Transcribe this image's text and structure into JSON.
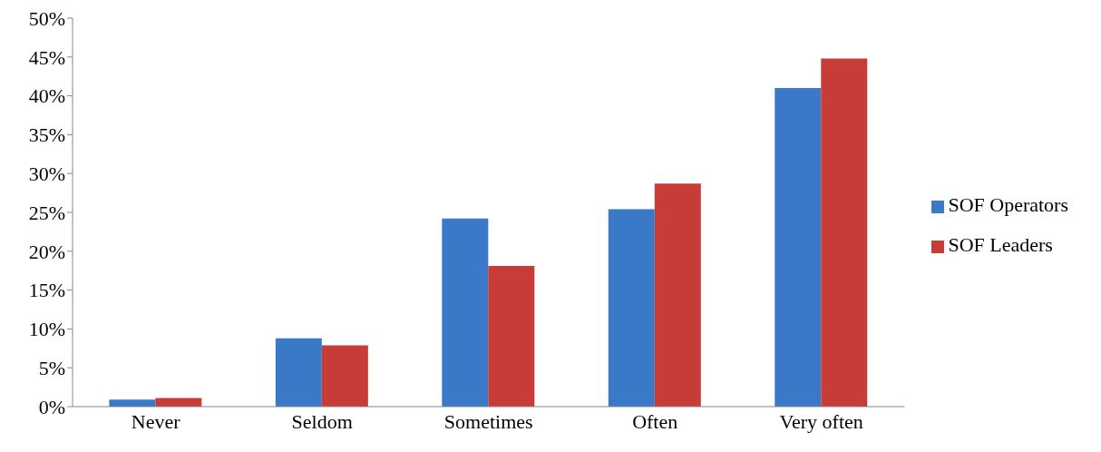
{
  "chart_data": {
    "type": "bar",
    "categories": [
      "Never",
      "Seldom",
      "Sometimes",
      "Often",
      "Very often"
    ],
    "series": [
      {
        "name": "SOF Operators",
        "color": "#3a78c8",
        "values": [
          0.9,
          8.8,
          24.2,
          25.4,
          41.0
        ]
      },
      {
        "name": "SOF Leaders",
        "color": "#c83c38",
        "values": [
          1.1,
          7.9,
          18.1,
          28.7,
          44.8
        ]
      }
    ],
    "ylim": [
      0,
      50
    ],
    "yticks": [
      {
        "value": 0,
        "label": "0%"
      },
      {
        "value": 5,
        "label": "5%"
      },
      {
        "value": 10,
        "label": "10%"
      },
      {
        "value": 15,
        "label": "15%"
      },
      {
        "value": 20,
        "label": "20%"
      },
      {
        "value": 25,
        "label": "25%"
      },
      {
        "value": 30,
        "label": "30%"
      },
      {
        "value": 35,
        "label": "35%"
      },
      {
        "value": 40,
        "label": "40%"
      },
      {
        "value": 45,
        "label": "45%"
      },
      {
        "value": 50,
        "label": "50%"
      }
    ],
    "grid": false,
    "legend": "right"
  }
}
